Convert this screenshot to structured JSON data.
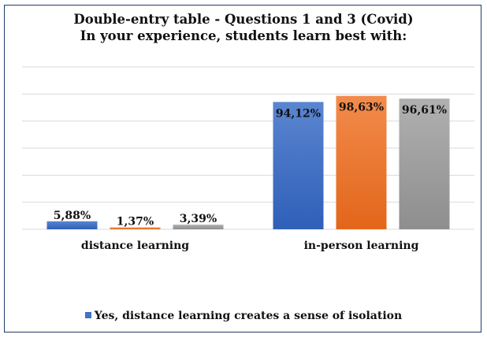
{
  "chart_data": {
    "type": "bar",
    "title": "Double-entry table - Questions 1 and 3 (Covid)",
    "subtitle": "In your experience, students learn best with:",
    "categories": [
      "distance learning",
      "in-person learning"
    ],
    "series": [
      {
        "name": "Yes, distance learning creates a sense of isolation",
        "color": "#4472c4",
        "values": [
          5.88,
          94.12
        ],
        "labels": [
          "5,88%",
          "94,12%"
        ]
      },
      {
        "color": "#ed7d31",
        "values": [
          1.37,
          98.63
        ],
        "labels": [
          "1,37%",
          "98,63%"
        ]
      },
      {
        "color": "#a5a5a5",
        "values": [
          3.39,
          96.61
        ],
        "labels": [
          "3,39%",
          "96,61%"
        ]
      }
    ],
    "ylim": [
      0,
      120
    ],
    "yticks": [
      0,
      20,
      40,
      60,
      80,
      100,
      120
    ],
    "y_tick_labels_visible": false,
    "grid": true,
    "legend_placement": "bottom",
    "border_color": "#1f3a6e"
  }
}
